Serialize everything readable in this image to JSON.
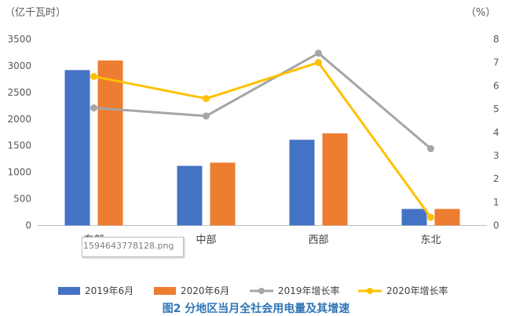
{
  "chart_data": {
    "type": "bar+line",
    "categories": [
      "东部",
      "中部",
      "西部",
      "东北"
    ],
    "bar_series": [
      {
        "name": "2019年6月",
        "values": [
          2920,
          1120,
          1610,
          310
        ],
        "color": "#4472c4"
      },
      {
        "name": "2020年6月",
        "values": [
          3100,
          1180,
          1730,
          310
        ],
        "color": "#ed7d31"
      }
    ],
    "line_series": [
      {
        "name": "2019年增长率",
        "values": [
          5.05,
          4.7,
          7.4,
          3.3
        ],
        "color": "#a5a5a5"
      },
      {
        "name": "2020年增长率",
        "values": [
          6.4,
          5.45,
          7.0,
          0.35
        ],
        "color": "#ffc000"
      }
    ],
    "y_left": {
      "label": "（亿千瓦时）",
      "min": 0,
      "max": 3500,
      "ticks": [
        0,
        500,
        1000,
        1500,
        2000,
        2500,
        3000,
        3500
      ]
    },
    "y_right": {
      "label": "（%）",
      "min": 0,
      "max": 8,
      "ticks": [
        0,
        1,
        2,
        3,
        4,
        5,
        6,
        7,
        8
      ]
    },
    "legend_position": "bottom",
    "caption": "图2 分地区当月全社会用电量及其增速"
  },
  "tooltip": {
    "text": "1594643778128.png"
  }
}
